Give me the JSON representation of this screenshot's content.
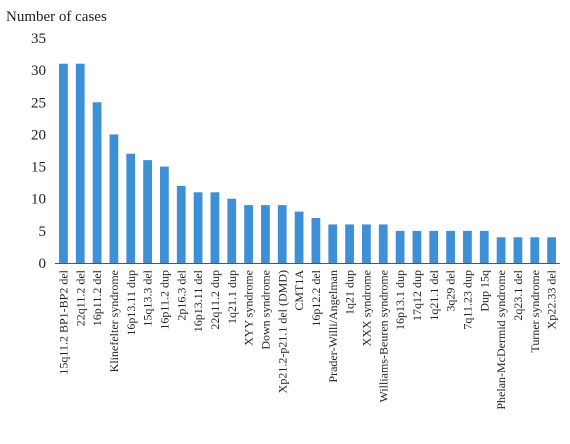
{
  "chart_data": {
    "type": "bar",
    "title": "",
    "xlabel": "",
    "ylabel": "Number of cases",
    "ylim": [
      0,
      35
    ],
    "yticks": [
      0,
      5,
      10,
      15,
      20,
      25,
      30,
      35
    ],
    "grid": false,
    "legend": "none",
    "bar_color": "#3d8fd6",
    "categories": [
      "15q11.2 BP1-BP2 del",
      "22q11.2 del",
      "16p11.2 del",
      "Klinefelter syndrome",
      "16p13.11 dup",
      "15q13.3 del",
      "16p11.2 dup",
      "2p16.3 del",
      "16p13.11 del",
      "22q11.2 dup",
      "1q21.1 dup",
      "XYY syndrome",
      "Down syndrome",
      "Xp21.2-p21.1 del (DMD)",
      "CMT1A",
      "16p12.2 del",
      "Prader-Willi/Angelman",
      "1q21 dup",
      "XXX syndrome",
      "Williams-Beuren syndrome",
      "16p13.1 dup",
      "17q12 dup",
      "1q21.1 del",
      "3q29 del",
      "7q11.23 dup",
      "Dup 15q",
      "Phelan-McDermid syndrome",
      "2q23.1 del",
      "Turner syndrome",
      "Xp22.33 del"
    ],
    "values": [
      31,
      31,
      25,
      20,
      17,
      16,
      15,
      12,
      11,
      11,
      10,
      9,
      9,
      9,
      8,
      7,
      6,
      6,
      6,
      6,
      5,
      5,
      5,
      5,
      5,
      5,
      4,
      4,
      4,
      4
    ]
  }
}
